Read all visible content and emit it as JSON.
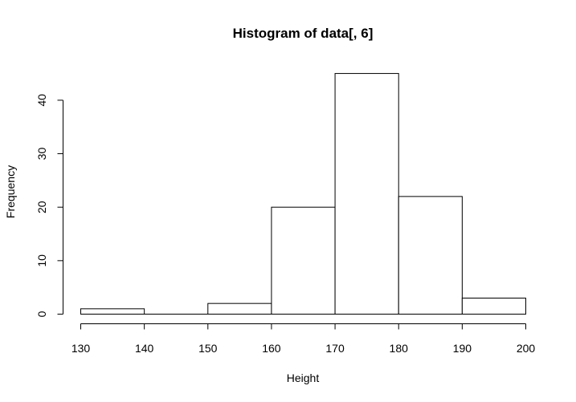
{
  "chart_data": {
    "type": "bar",
    "title": "Histogram of data[, 6]",
    "xlabel": "Height",
    "ylabel": "Frequency",
    "bins": [
      {
        "from": 130,
        "to": 140,
        "count": 1
      },
      {
        "from": 140,
        "to": 150,
        "count": 0
      },
      {
        "from": 150,
        "to": 160,
        "count": 2
      },
      {
        "from": 160,
        "to": 170,
        "count": 20
      },
      {
        "from": 170,
        "to": 180,
        "count": 45
      },
      {
        "from": 180,
        "to": 190,
        "count": 22
      },
      {
        "from": 190,
        "to": 200,
        "count": 3
      }
    ],
    "xticks": [
      130,
      140,
      150,
      160,
      170,
      180,
      190,
      200
    ],
    "yticks": [
      0,
      10,
      20,
      30,
      40
    ],
    "xlim": [
      130,
      200
    ],
    "ylim": [
      0,
      40
    ],
    "grid": false
  }
}
